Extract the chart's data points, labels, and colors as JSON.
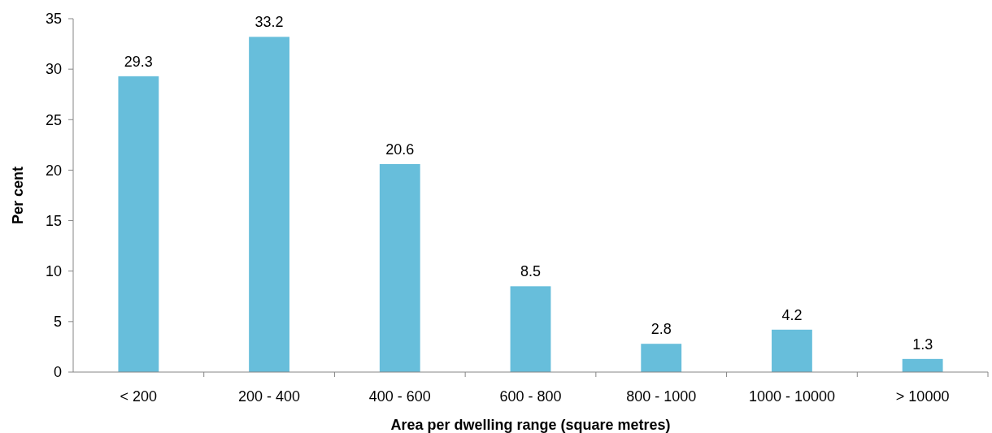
{
  "chart_data": {
    "type": "bar",
    "xlabel": "Area per dwelling range (square metres)",
    "ylabel": "Per cent",
    "categories": [
      "< 200",
      "200 - 400",
      "400 - 600",
      "600 - 800",
      "800 - 1000",
      "1000 - 10000",
      "> 10000"
    ],
    "values": [
      29.3,
      33.2,
      20.6,
      8.5,
      2.8,
      4.2,
      1.3
    ],
    "color": "#67bedb",
    "ylim": [
      0,
      35
    ],
    "yticks": [
      0,
      5,
      10,
      15,
      20,
      25,
      30,
      35
    ],
    "grid": false,
    "data_labels": true
  }
}
